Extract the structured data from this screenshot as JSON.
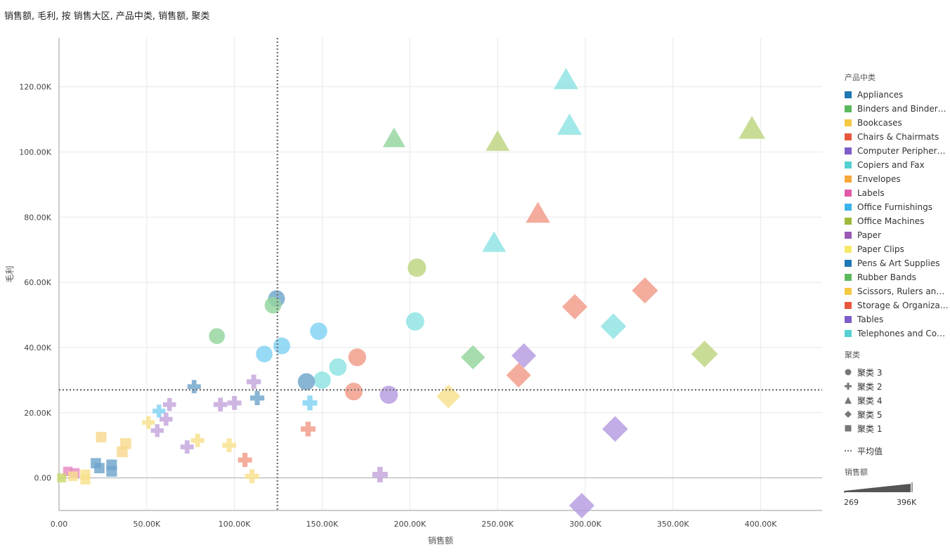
{
  "title": "销售额, 毛利, 按 销售大区, 产品中类, 销售额, 聚类",
  "chart_data": {
    "type": "scatter",
    "xlabel": "销售额",
    "ylabel": "毛利",
    "xlim": [
      0,
      435000
    ],
    "ylim": [
      -10000,
      135000
    ],
    "x_ticks": [
      0,
      50000,
      100000,
      150000,
      200000,
      250000,
      300000,
      350000,
      400000
    ],
    "x_tick_labels": [
      "0.00",
      "50.00K",
      "100.00K",
      "150.00K",
      "200.00K",
      "250.00K",
      "300.00K",
      "350.00K",
      "400.00K"
    ],
    "y_ticks": [
      0,
      20000,
      40000,
      60000,
      80000,
      100000,
      120000
    ],
    "y_tick_labels": [
      "0.00",
      "20.00K",
      "40.00K",
      "60.00K",
      "80.00K",
      "100.00K",
      "120.00K"
    ],
    "grid": true,
    "reference_lines": {
      "x_average": 124500,
      "y_average": 27000,
      "label": "平均值"
    },
    "color_legend_title": "产品中类",
    "categories": [
      {
        "name": "Appliances",
        "color": "#1f77b4"
      },
      {
        "name": "Binders and Binder Ac...",
        "color": "#5cb85c"
      },
      {
        "name": "Bookcases",
        "color": "#f4c842"
      },
      {
        "name": "Chairs & Chairmats",
        "color": "#e8573d"
      },
      {
        "name": "Computer Peripherals",
        "color": "#7e5cc8"
      },
      {
        "name": "Copiers and Fax",
        "color": "#55d0d0"
      },
      {
        "name": "Envelopes",
        "color": "#f7a83c"
      },
      {
        "name": "Labels",
        "color": "#e05aa8"
      },
      {
        "name": "Office Furnishings",
        "color": "#3bb3ea"
      },
      {
        "name": "Office Machines",
        "color": "#9cba3c"
      },
      {
        "name": "Paper",
        "color": "#9b59b6"
      },
      {
        "name": "Paper Clips",
        "color": "#f6e96a"
      },
      {
        "name": "Pens & Art Supplies",
        "color": "#1f77b4"
      },
      {
        "name": "Rubber Bands",
        "color": "#5cb85c"
      },
      {
        "name": "Scissors, Rulers and Tr...",
        "color": "#f4c842"
      },
      {
        "name": "Storage & Organization",
        "color": "#e8573d"
      },
      {
        "name": "Tables",
        "color": "#7e5cc8"
      },
      {
        "name": "Telephones and Com...",
        "color": "#55d0d0"
      }
    ],
    "shape_legend_title": "聚类",
    "clusters": [
      {
        "name": "聚类 3",
        "shape": "circle"
      },
      {
        "name": "聚类 2",
        "shape": "cross"
      },
      {
        "name": "聚类 4",
        "shape": "triangle"
      },
      {
        "name": "聚类 5",
        "shape": "diamond"
      },
      {
        "name": "聚类 1",
        "shape": "square"
      }
    ],
    "average_legend_label": "平均值",
    "size_legend_title": "销售额",
    "size_legend_min": "269",
    "size_legend_max": "396K",
    "points": [
      {
        "x": 289000,
        "y": 122000,
        "shape": "triangle",
        "color": "#8ee3e3"
      },
      {
        "x": 291000,
        "y": 108000,
        "shape": "triangle",
        "color": "#8ee3e3"
      },
      {
        "x": 395000,
        "y": 107000,
        "shape": "triangle",
        "color": "#bdd47e"
      },
      {
        "x": 191000,
        "y": 104000,
        "shape": "triangle",
        "color": "#92d49c"
      },
      {
        "x": 250000,
        "y": 103000,
        "shape": "triangle",
        "color": "#bdd47e"
      },
      {
        "x": 273000,
        "y": 81000,
        "shape": "triangle",
        "color": "#f29a88"
      },
      {
        "x": 248000,
        "y": 72000,
        "shape": "triangle",
        "color": "#8ee3e3"
      },
      {
        "x": 204000,
        "y": 64500,
        "shape": "circle",
        "color": "#bdd47e"
      },
      {
        "x": 124000,
        "y": 55000,
        "shape": "circle",
        "color": "#6fa5cc"
      },
      {
        "x": 122000,
        "y": 53000,
        "shape": "circle",
        "color": "#92d49c"
      },
      {
        "x": 203000,
        "y": 48000,
        "shape": "circle",
        "color": "#8ee3e3"
      },
      {
        "x": 148000,
        "y": 45000,
        "shape": "circle",
        "color": "#80d2f3"
      },
      {
        "x": 90000,
        "y": 43500,
        "shape": "circle",
        "color": "#92d49c"
      },
      {
        "x": 127000,
        "y": 40500,
        "shape": "circle",
        "color": "#80d2f3"
      },
      {
        "x": 117000,
        "y": 38000,
        "shape": "circle",
        "color": "#80d2f3"
      },
      {
        "x": 170000,
        "y": 37000,
        "shape": "circle",
        "color": "#f29a88"
      },
      {
        "x": 159000,
        "y": 34000,
        "shape": "circle",
        "color": "#8ee3e3"
      },
      {
        "x": 150000,
        "y": 30000,
        "shape": "circle",
        "color": "#8ee3e3"
      },
      {
        "x": 141000,
        "y": 29500,
        "shape": "circle",
        "color": "#6fa5cc"
      },
      {
        "x": 168000,
        "y": 26500,
        "shape": "circle",
        "color": "#f29a88"
      },
      {
        "x": 188000,
        "y": 25500,
        "shape": "circle",
        "color": "#b59be0"
      },
      {
        "x": 334000,
        "y": 57500,
        "shape": "diamond",
        "color": "#f29a88"
      },
      {
        "x": 294000,
        "y": 52500,
        "shape": "diamond",
        "color": "#f29a88"
      },
      {
        "x": 316000,
        "y": 46500,
        "shape": "diamond",
        "color": "#8ee3e3"
      },
      {
        "x": 368000,
        "y": 38000,
        "shape": "diamond",
        "color": "#bdd47e"
      },
      {
        "x": 265000,
        "y": 37500,
        "shape": "diamond",
        "color": "#b59be0"
      },
      {
        "x": 236000,
        "y": 37000,
        "shape": "diamond",
        "color": "#92d49c"
      },
      {
        "x": 262000,
        "y": 31500,
        "shape": "diamond",
        "color": "#f29a88"
      },
      {
        "x": 222000,
        "y": 25000,
        "shape": "diamond",
        "color": "#f8e08c"
      },
      {
        "x": 317000,
        "y": 15000,
        "shape": "diamond",
        "color": "#b59be0"
      },
      {
        "x": 298000,
        "y": -8500,
        "shape": "diamond",
        "color": "#b59be0"
      },
      {
        "x": 111000,
        "y": 29500,
        "shape": "cross",
        "color": "#c3a5dc"
      },
      {
        "x": 77000,
        "y": 28000,
        "shape": "cross",
        "color": "#6fa5cc"
      },
      {
        "x": 113000,
        "y": 24500,
        "shape": "cross",
        "color": "#6fa5cc"
      },
      {
        "x": 92000,
        "y": 22500,
        "shape": "cross",
        "color": "#c3a5dc"
      },
      {
        "x": 100000,
        "y": 23000,
        "shape": "cross",
        "color": "#c3a5dc"
      },
      {
        "x": 143000,
        "y": 23000,
        "shape": "cross",
        "color": "#80d2f3"
      },
      {
        "x": 63000,
        "y": 22500,
        "shape": "cross",
        "color": "#c3a5dc"
      },
      {
        "x": 57000,
        "y": 20500,
        "shape": "cross",
        "color": "#80d2f3"
      },
      {
        "x": 61000,
        "y": 18000,
        "shape": "cross",
        "color": "#c3a5dc"
      },
      {
        "x": 51000,
        "y": 17000,
        "shape": "cross",
        "color": "#f8e08c"
      },
      {
        "x": 142000,
        "y": 15000,
        "shape": "cross",
        "color": "#f29a88"
      },
      {
        "x": 56000,
        "y": 14500,
        "shape": "cross",
        "color": "#c3a5dc"
      },
      {
        "x": 79000,
        "y": 11500,
        "shape": "cross",
        "color": "#f8e08c"
      },
      {
        "x": 97000,
        "y": 10000,
        "shape": "cross",
        "color": "#f8e08c"
      },
      {
        "x": 73000,
        "y": 9500,
        "shape": "cross",
        "color": "#c3a5dc"
      },
      {
        "x": 106000,
        "y": 5500,
        "shape": "cross",
        "color": "#f29a88"
      },
      {
        "x": 110000,
        "y": 500,
        "shape": "cross",
        "color": "#f8e08c"
      },
      {
        "x": 183000,
        "y": 1000,
        "shape": "cross",
        "color": "#c3a5dc"
      },
      {
        "x": 24000,
        "y": 12500,
        "shape": "square",
        "color": "#f8d88c"
      },
      {
        "x": 38000,
        "y": 10500,
        "shape": "square",
        "color": "#f8d88c"
      },
      {
        "x": 36000,
        "y": 8000,
        "shape": "square",
        "color": "#f8d88c"
      },
      {
        "x": 21000,
        "y": 4500,
        "shape": "square",
        "color": "#6fa5cc"
      },
      {
        "x": 23000,
        "y": 3000,
        "shape": "square",
        "color": "#6fa5cc"
      },
      {
        "x": 30000,
        "y": 4000,
        "shape": "square",
        "color": "#6fa5cc"
      },
      {
        "x": 30000,
        "y": 2000,
        "shape": "square",
        "color": "#6fa5cc"
      },
      {
        "x": 15000,
        "y": 1000,
        "shape": "square",
        "color": "#f8e08c"
      },
      {
        "x": 15000,
        "y": -500,
        "shape": "square",
        "color": "#f8e08c"
      },
      {
        "x": 5000,
        "y": 2000,
        "shape": "square",
        "color": "#e88ac0"
      },
      {
        "x": 9000,
        "y": 1500,
        "shape": "square",
        "color": "#e88ac0"
      },
      {
        "x": 8000,
        "y": 500,
        "shape": "square",
        "color": "#f8e08c"
      },
      {
        "x": 1500,
        "y": 0,
        "shape": "square",
        "color": "#c9d86a"
      }
    ]
  }
}
